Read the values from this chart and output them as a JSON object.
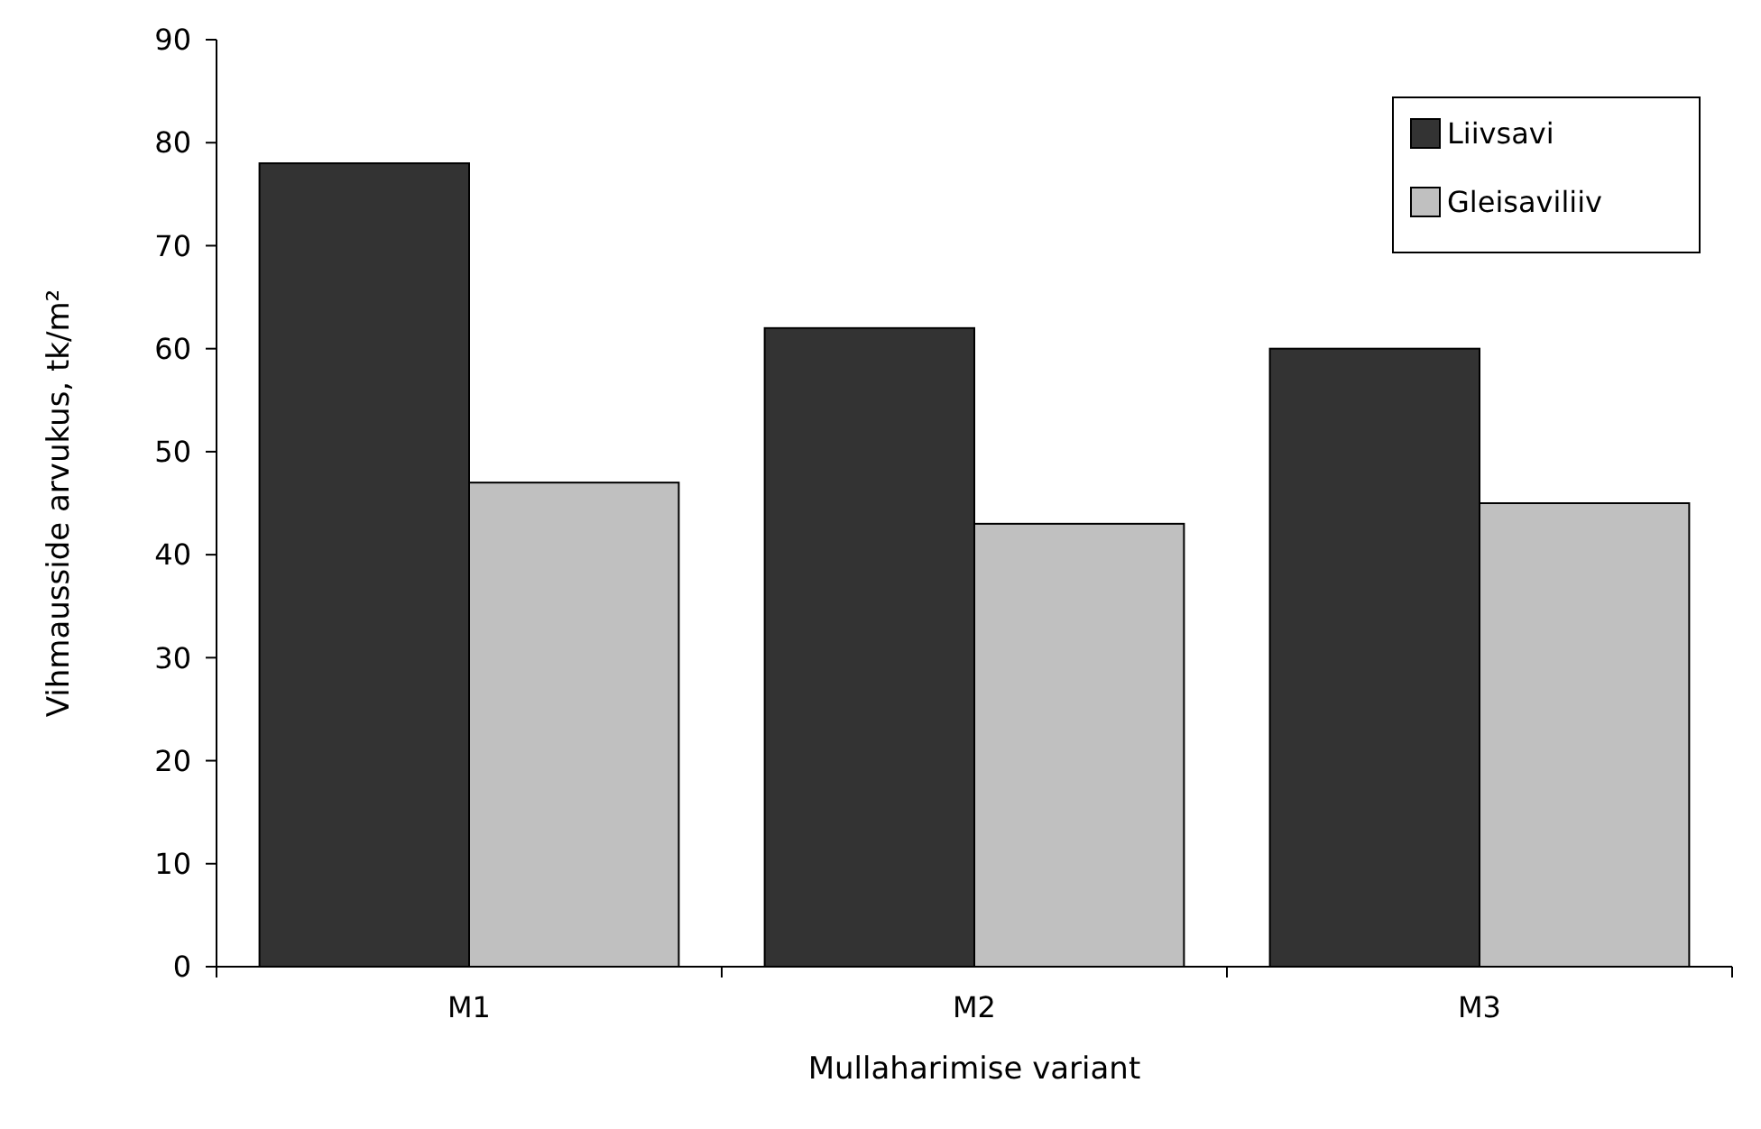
{
  "chart_data": {
    "type": "bar",
    "xlabel": "Mullaharimise variant",
    "ylabel": "Vihmausside arvukus, tk/m²",
    "categories": [
      "M1",
      "M2",
      "M3"
    ],
    "series": [
      {
        "name": "Liivsavi",
        "color": "#333333",
        "values": [
          78,
          62,
          60
        ]
      },
      {
        "name": "Gleisaviliiv",
        "color": "#c0c0c0",
        "values": [
          47,
          43,
          45
        ]
      }
    ],
    "ylim": [
      0,
      90
    ],
    "yticks": [
      0,
      10,
      20,
      30,
      40,
      50,
      60,
      70,
      80,
      90
    ],
    "grid": false,
    "legend": "top right"
  }
}
